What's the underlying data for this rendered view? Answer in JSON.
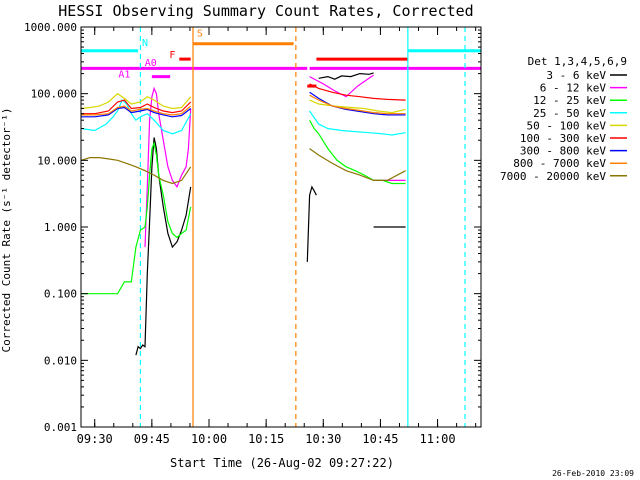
{
  "chart_data": {
    "type": "line",
    "title": "HESSI Observing Summary Count Rates, Corrected",
    "xlabel": "Start Time (26-Aug-02 09:27:22)",
    "ylabel": "Corrected Count Rate (s⁻¹ detector⁻¹)",
    "footer": "26-Feb-2010 23:09",
    "yscale": "log",
    "ylim": [
      0.001,
      1000
    ],
    "y_ticks": [
      {
        "v": 0.001,
        "label": "0.001"
      },
      {
        "v": 0.01,
        "label": "0.010"
      },
      {
        "v": 0.1,
        "label": "0.100"
      },
      {
        "v": 1,
        "label": "1.000"
      },
      {
        "v": 10,
        "label": "10.000"
      },
      {
        "v": 100,
        "label": "100.000"
      },
      {
        "v": 1000,
        "label": "1000.000"
      }
    ],
    "xlim": [
      9.44,
      11.19
    ],
    "x_ticks": [
      {
        "v": 9.5,
        "label": "09:30"
      },
      {
        "v": 9.75,
        "label": "09:45"
      },
      {
        "v": 10.0,
        "label": "10:00"
      },
      {
        "v": 10.25,
        "label": "10:15"
      },
      {
        "v": 10.5,
        "label": "10:30"
      },
      {
        "v": 10.75,
        "label": "10:45"
      },
      {
        "v": 11.0,
        "label": "11:00"
      }
    ],
    "legend_title": "Det 1,3,4,5,6,9",
    "legend_position": "right",
    "series": [
      {
        "name": "3 - 6 keV",
        "color": "#000000",
        "segments": [
          [
            [
              9.68,
              0.012
            ],
            [
              9.69,
              0.016
            ],
            [
              9.7,
              0.015
            ],
            [
              9.71,
              0.017
            ],
            [
              9.72,
              0.016
            ],
            [
              9.73,
              0.2
            ],
            [
              9.74,
              1.2
            ],
            [
              9.75,
              8
            ],
            [
              9.76,
              22
            ],
            [
              9.77,
              15
            ],
            [
              9.78,
              6
            ],
            [
              9.8,
              2
            ],
            [
              9.82,
              0.8
            ],
            [
              9.84,
              0.5
            ],
            [
              9.86,
              0.6
            ],
            [
              9.88,
              0.9
            ],
            [
              9.9,
              1.5
            ],
            [
              9.92,
              4
            ]
          ],
          [
            [
              10.43,
              0.3
            ],
            [
              10.44,
              3
            ],
            [
              10.45,
              4
            ],
            [
              10.46,
              3.5
            ],
            [
              10.47,
              3
            ]
          ],
          [
            [
              10.48,
              170
            ],
            [
              10.52,
              180
            ],
            [
              10.55,
              165
            ],
            [
              10.58,
              185
            ],
            [
              10.62,
              180
            ],
            [
              10.66,
              200
            ],
            [
              10.7,
              195
            ],
            [
              10.72,
              205
            ]
          ],
          [
            [
              10.72,
              1
            ],
            [
              10.8,
              1
            ],
            [
              10.86,
              1
            ]
          ]
        ]
      },
      {
        "name": "6 - 12 keV",
        "color": "#ff00ff",
        "segments": [
          [
            [
              9.72,
              0.5
            ],
            [
              9.73,
              4
            ],
            [
              9.74,
              40
            ],
            [
              9.75,
              90
            ],
            [
              9.76,
              120
            ],
            [
              9.77,
              100
            ],
            [
              9.78,
              50
            ],
            [
              9.8,
              20
            ],
            [
              9.82,
              8
            ],
            [
              9.84,
              5
            ],
            [
              9.86,
              4
            ],
            [
              9.88,
              6
            ],
            [
              9.9,
              8
            ],
            [
              9.91,
              15
            ],
            [
              9.92,
              60
            ]
          ],
          [
            [
              10.44,
              180
            ],
            [
              10.5,
              140
            ],
            [
              10.55,
              110
            ],
            [
              10.6,
              90
            ],
            [
              10.65,
              130
            ],
            [
              10.7,
              170
            ],
            [
              10.72,
              190
            ]
          ],
          [
            [
              10.72,
              5
            ],
            [
              10.8,
              5
            ],
            [
              10.86,
              5
            ]
          ]
        ]
      },
      {
        "name": "12 - 25 keV",
        "color": "#00ff00",
        "segments": [
          [
            [
              9.44,
              0.1
            ],
            [
              9.6,
              0.1
            ],
            [
              9.63,
              0.15
            ],
            [
              9.66,
              0.15
            ],
            [
              9.68,
              0.5
            ],
            [
              9.7,
              0.9
            ],
            [
              9.72,
              1.0
            ],
            [
              9.73,
              2
            ],
            [
              9.74,
              6
            ],
            [
              9.75,
              15
            ],
            [
              9.76,
              18
            ],
            [
              9.77,
              12
            ],
            [
              9.78,
              6
            ],
            [
              9.8,
              3
            ],
            [
              9.82,
              1.2
            ],
            [
              9.84,
              0.8
            ],
            [
              9.86,
              0.7
            ],
            [
              9.88,
              0.8
            ],
            [
              9.9,
              0.9
            ],
            [
              9.92,
              2
            ]
          ],
          [
            [
              10.44,
              40
            ],
            [
              10.46,
              30
            ],
            [
              10.48,
              25
            ],
            [
              10.52,
              15
            ],
            [
              10.56,
              10
            ],
            [
              10.6,
              8
            ],
            [
              10.64,
              7
            ],
            [
              10.68,
              6
            ],
            [
              10.72,
              5
            ],
            [
              10.76,
              5
            ],
            [
              10.8,
              4.5
            ],
            [
              10.86,
              4.5
            ]
          ]
        ]
      },
      {
        "name": "25 - 50 keV",
        "color": "#00ffff",
        "segments": [
          [
            [
              9.44,
              30
            ],
            [
              9.5,
              28
            ],
            [
              9.55,
              35
            ],
            [
              9.58,
              45
            ],
            [
              9.6,
              55
            ],
            [
              9.62,
              80
            ],
            [
              9.64,
              70
            ],
            [
              9.66,
              50
            ],
            [
              9.68,
              40
            ],
            [
              9.7,
              45
            ],
            [
              9.73,
              50
            ],
            [
              9.76,
              40
            ],
            [
              9.8,
              28
            ],
            [
              9.84,
              25
            ],
            [
              9.88,
              28
            ],
            [
              9.92,
              50
            ]
          ],
          [
            [
              10.44,
              55
            ],
            [
              10.48,
              35
            ],
            [
              10.52,
              30
            ],
            [
              10.58,
              28
            ],
            [
              10.64,
              27
            ],
            [
              10.7,
              26
            ],
            [
              10.76,
              25
            ],
            [
              10.8,
              24
            ],
            [
              10.86,
              26
            ]
          ]
        ]
      },
      {
        "name": "50 - 100 keV",
        "color": "#d8d800",
        "segments": [
          [
            [
              9.44,
              60
            ],
            [
              9.48,
              62
            ],
            [
              9.52,
              65
            ],
            [
              9.56,
              75
            ],
            [
              9.6,
              100
            ],
            [
              9.63,
              85
            ],
            [
              9.66,
              70
            ],
            [
              9.7,
              75
            ],
            [
              9.73,
              90
            ],
            [
              9.76,
              80
            ],
            [
              9.8,
              65
            ],
            [
              9.84,
              60
            ],
            [
              9.88,
              62
            ],
            [
              9.92,
              90
            ]
          ],
          [
            [
              10.44,
              80
            ],
            [
              10.48,
              70
            ],
            [
              10.55,
              65
            ],
            [
              10.62,
              62
            ],
            [
              10.68,
              60
            ],
            [
              10.74,
              55
            ],
            [
              10.8,
              52
            ],
            [
              10.86,
              58
            ]
          ]
        ]
      },
      {
        "name": "100 - 300 keV",
        "color": "#ff0000",
        "segments": [
          [
            [
              9.44,
              50
            ],
            [
              9.5,
              50
            ],
            [
              9.56,
              55
            ],
            [
              9.6,
              75
            ],
            [
              9.63,
              80
            ],
            [
              9.66,
              60
            ],
            [
              9.7,
              62
            ],
            [
              9.73,
              70
            ],
            [
              9.76,
              62
            ],
            [
              9.8,
              55
            ],
            [
              9.84,
              52
            ],
            [
              9.88,
              55
            ],
            [
              9.92,
              75
            ]
          ],
          [
            [
              10.44,
              140
            ],
            [
              10.48,
              120
            ],
            [
              10.54,
              105
            ],
            [
              10.6,
              95
            ],
            [
              10.66,
              90
            ],
            [
              10.72,
              85
            ],
            [
              10.78,
              82
            ],
            [
              10.86,
              80
            ]
          ]
        ]
      },
      {
        "name": "300 - 800 keV",
        "color": "#0000ff",
        "segments": [
          [
            [
              9.44,
              45
            ],
            [
              9.5,
              45
            ],
            [
              9.56,
              48
            ],
            [
              9.6,
              60
            ],
            [
              9.63,
              62
            ],
            [
              9.66,
              52
            ],
            [
              9.7,
              55
            ],
            [
              9.73,
              58
            ],
            [
              9.76,
              52
            ],
            [
              9.8,
              48
            ],
            [
              9.84,
              45
            ],
            [
              9.88,
              47
            ],
            [
              9.92,
              60
            ]
          ],
          [
            [
              10.44,
              105
            ],
            [
              10.48,
              85
            ],
            [
              10.54,
              65
            ],
            [
              10.6,
              58
            ],
            [
              10.66,
              54
            ],
            [
              10.72,
              50
            ],
            [
              10.78,
              48
            ],
            [
              10.86,
              48
            ]
          ]
        ]
      },
      {
        "name": "800 - 7000 keV",
        "color": "#ff8000",
        "segments": [
          [
            [
              9.44,
              48
            ],
            [
              9.5,
              48
            ],
            [
              9.56,
              50
            ],
            [
              9.6,
              62
            ],
            [
              9.63,
              65
            ],
            [
              9.66,
              55
            ],
            [
              9.7,
              58
            ],
            [
              9.73,
              60
            ],
            [
              9.76,
              55
            ],
            [
              9.8,
              50
            ],
            [
              9.84,
              48
            ],
            [
              9.88,
              50
            ],
            [
              9.92,
              65
            ]
          ],
          [
            [
              10.44,
              95
            ],
            [
              10.48,
              80
            ],
            [
              10.54,
              65
            ],
            [
              10.6,
              60
            ],
            [
              10.66,
              56
            ],
            [
              10.72,
              52
            ],
            [
              10.78,
              50
            ],
            [
              10.86,
              50
            ]
          ]
        ]
      },
      {
        "name": "7000 - 20000 keV",
        "color": "#8b7500",
        "segments": [
          [
            [
              9.44,
              10
            ],
            [
              9.48,
              11
            ],
            [
              9.52,
              11
            ],
            [
              9.56,
              10.5
            ],
            [
              9.6,
              10
            ],
            [
              9.64,
              9
            ],
            [
              9.68,
              8
            ],
            [
              9.72,
              7
            ],
            [
              9.76,
              6
            ],
            [
              9.8,
              5
            ],
            [
              9.84,
              4.5
            ],
            [
              9.88,
              5
            ],
            [
              9.92,
              8
            ]
          ],
          [
            [
              10.44,
              15
            ],
            [
              10.48,
              12
            ],
            [
              10.54,
              9
            ],
            [
              10.6,
              7
            ],
            [
              10.66,
              6
            ],
            [
              10.72,
              5
            ],
            [
              10.78,
              5
            ],
            [
              10.86,
              7
            ]
          ]
        ]
      }
    ],
    "flags": [
      {
        "color": "#00ffff",
        "level": 440,
        "start": 9.44,
        "end": 9.69
      },
      {
        "color": "#00ffff",
        "level": 440,
        "start": 10.87,
        "end": 11.19
      },
      {
        "color": "#ff00ff",
        "level": 240,
        "start": 9.44,
        "end": 10.43
      },
      {
        "color": "#ff00ff",
        "level": 240,
        "start": 10.44,
        "end": 11.19
      },
      {
        "color": "#ff0000",
        "level": 330,
        "start": 9.87,
        "end": 9.92
      },
      {
        "color": "#ff0000",
        "level": 330,
        "start": 10.47,
        "end": 10.87
      },
      {
        "color": "#ff0000",
        "level": 130,
        "start": 10.43,
        "end": 10.47
      },
      {
        "color": "#ff8000",
        "level": 560,
        "start": 9.93,
        "end": 10.37
      },
      {
        "color": "#ff00ff",
        "level": 180,
        "start": 9.75,
        "end": 9.83
      }
    ],
    "flag_labels": [
      {
        "text": "N",
        "color": "#00ffff",
        "x": 9.72,
        "y": 520
      },
      {
        "text": "S",
        "color": "#ff8000",
        "x": 9.96,
        "y": 720
      },
      {
        "text": "F",
        "color": "#ff0000",
        "x": 9.84,
        "y": 345
      },
      {
        "text": "A1",
        "color": "#ff00ff",
        "x": 9.63,
        "y": 175
      },
      {
        "text": "A0",
        "color": "#ff00ff",
        "x": 9.745,
        "y": 260
      }
    ],
    "vlines": [
      {
        "x": 9.7,
        "color": "#00ffff",
        "style": "dashed"
      },
      {
        "x": 9.93,
        "color": "#ff8000",
        "style": "solid"
      },
      {
        "x": 10.38,
        "color": "#ff8000",
        "style": "dashed"
      },
      {
        "x": 10.87,
        "color": "#00ffff",
        "style": "solid"
      },
      {
        "x": 11.12,
        "color": "#00ffff",
        "style": "dashed"
      }
    ]
  }
}
